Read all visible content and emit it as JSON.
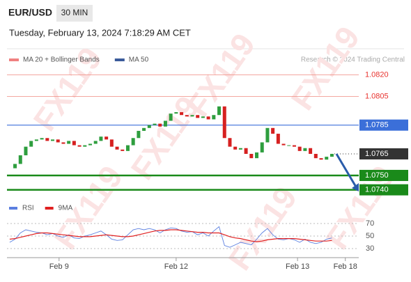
{
  "header": {
    "symbol": "EUR/USD",
    "interval": "30 MIN",
    "timestamp": "Tuesday, February 13, 2024 7:18:29 AM CET",
    "credit": "Research © 2024 Trading Central",
    "watermark": "FX119"
  },
  "chart_data": [
    {
      "type": "candlestick",
      "legend": [
        {
          "name": "MA 20 + Bollinger Bands",
          "color": "#f08080"
        },
        {
          "name": "MA 50",
          "color": "#3a5a9a"
        }
      ],
      "up_color": "#2e9e3e",
      "down_color": "#d62020",
      "closes": [
        1.0755,
        1.0758,
        1.0764,
        1.077,
        1.0774,
        1.0775,
        1.0776,
        1.0774,
        1.0775,
        1.0773,
        1.0772,
        1.0774,
        1.0771,
        1.077,
        1.0771,
        1.0772,
        1.0774,
        1.0777,
        1.0775,
        1.077,
        1.0768,
        1.0767,
        1.0771,
        1.0776,
        1.0781,
        1.0783,
        1.0785,
        1.0786,
        1.0784,
        1.0788,
        1.0793,
        1.0794,
        1.0792,
        1.0791,
        1.0792,
        1.079,
        1.0791,
        1.0789,
        1.0792,
        1.0798,
        1.0776,
        1.077,
        1.0768,
        1.0769,
        1.0765,
        1.0762,
        1.0766,
        1.0773,
        1.0783,
        1.0779,
        1.0772,
        1.0771,
        1.0771,
        1.077,
        1.0767,
        1.0769,
        1.0765,
        1.0762,
        1.0761,
        1.0763,
        1.0765
      ],
      "xlim": [
        -0.5,
        65
      ],
      "xticks": [
        {
          "value": 9.2,
          "label": "Feb 9"
        },
        {
          "value": 31,
          "label": "Feb 12"
        },
        {
          "value": 53.6,
          "label": "Feb 13"
        },
        {
          "value": 62.5,
          "label": "Feb 18"
        }
      ],
      "ylim": [
        1.0734,
        1.0826
      ],
      "levels": [
        {
          "value": 1.082,
          "label": "1.0820",
          "style": "resistance",
          "color": "#e8322e"
        },
        {
          "value": 1.0805,
          "label": "1.0805",
          "style": "resistance",
          "color": "#e8322e"
        },
        {
          "value": 1.0785,
          "label": "1.0785",
          "style": "pivot",
          "color": "#3b6fd9"
        },
        {
          "value": 1.0765,
          "label": "1.0765",
          "style": "current",
          "color": "#333333"
        },
        {
          "value": 1.075,
          "label": "1.0750",
          "style": "support",
          "color": "#1a8a1a"
        },
        {
          "value": 1.074,
          "label": "1.0740",
          "style": "support",
          "color": "#1a8a1a"
        }
      ]
    },
    {
      "type": "line",
      "series": [
        {
          "name": "RSI",
          "color": "#5b7fe0",
          "values": [
            40,
            45,
            55,
            60,
            58,
            56,
            55,
            52,
            54,
            50,
            48,
            52,
            47,
            46,
            50,
            52,
            55,
            58,
            52,
            45,
            43,
            44,
            52,
            60,
            62,
            60,
            62,
            60,
            55,
            60,
            63,
            62,
            58,
            56,
            57,
            52,
            55,
            50,
            58,
            65,
            35,
            32,
            36,
            40,
            38,
            36,
            45,
            55,
            62,
            52,
            45,
            44,
            46,
            44,
            40,
            45,
            40,
            38,
            40,
            45,
            47
          ]
        },
        {
          "name": "9MA",
          "color": "#e02020",
          "values": [
            45,
            46,
            48,
            50,
            52,
            54,
            55,
            55,
            54,
            53,
            52,
            51,
            50,
            49,
            49,
            49,
            50,
            51,
            52,
            51,
            50,
            49,
            49,
            50,
            52,
            54,
            56,
            58,
            59,
            59,
            60,
            60,
            59,
            58,
            57,
            56,
            56,
            55,
            55,
            55,
            52,
            49,
            47,
            46,
            44,
            42,
            41,
            42,
            44,
            45,
            46,
            46,
            46,
            46,
            45,
            44,
            43,
            42,
            42,
            42,
            43
          ]
        }
      ],
      "ylim": [
        20,
        80
      ],
      "yticks": [
        70,
        50,
        30
      ]
    }
  ]
}
